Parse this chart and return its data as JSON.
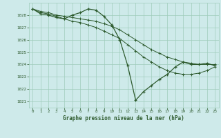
{
  "title": "Graphe pression niveau de la mer (hPa)",
  "bg_color": "#ceeaea",
  "grid_color": "#a0ccbb",
  "line_color": "#2d5a2d",
  "ylim": [
    1020.5,
    1029.0
  ],
  "yticks": [
    1021,
    1022,
    1023,
    1024,
    1025,
    1026,
    1027,
    1028
  ],
  "xlim": [
    -0.5,
    23.5
  ],
  "xticks": [
    0,
    1,
    2,
    3,
    4,
    5,
    6,
    7,
    8,
    9,
    10,
    11,
    12,
    13,
    14,
    15,
    16,
    17,
    18,
    19,
    20,
    21,
    22,
    23
  ],
  "series1": [
    1028.5,
    1028.1,
    1028.0,
    1027.8,
    1027.7,
    1028.0,
    1028.2,
    1028.5,
    1028.4,
    1027.9,
    1027.2,
    1026.0,
    1023.9,
    1021.1,
    1021.8,
    1022.3,
    1022.8,
    1023.2,
    1023.8,
    1024.2,
    1024.0,
    1024.0,
    1024.1,
    1023.9
  ],
  "series2": [
    1028.5,
    1028.2,
    1028.1,
    1027.9,
    1027.7,
    1027.5,
    1027.4,
    1027.2,
    1027.0,
    1026.7,
    1026.4,
    1026.1,
    1025.6,
    1025.1,
    1024.6,
    1024.2,
    1023.8,
    1023.5,
    1023.3,
    1023.2,
    1023.2,
    1023.3,
    1023.5,
    1023.8
  ],
  "series3": [
    1028.5,
    1028.3,
    1028.2,
    1028.0,
    1027.9,
    1027.8,
    1027.7,
    1027.6,
    1027.5,
    1027.3,
    1027.1,
    1026.8,
    1026.4,
    1026.0,
    1025.6,
    1025.2,
    1024.9,
    1024.6,
    1024.4,
    1024.2,
    1024.1,
    1024.0,
    1024.0,
    1024.0
  ]
}
